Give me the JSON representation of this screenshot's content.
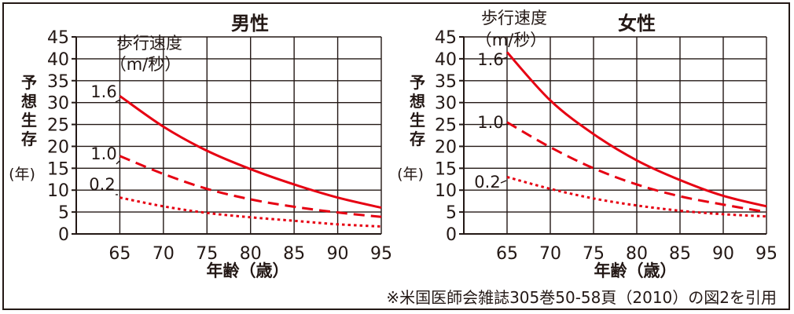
{
  "chart_data": [
    {
      "type": "line",
      "title": "男性",
      "xlabel": "年齢（歳）",
      "ylabel": "予想生存",
      "yunit": "(年)",
      "legend_title": [
        "歩行速度",
        "（m/秒）"
      ],
      "x": [
        65,
        70,
        75,
        80,
        85,
        90,
        95
      ],
      "xlim": [
        60,
        95
      ],
      "ylim": [
        0,
        45
      ],
      "yticks": [
        0,
        5,
        10,
        15,
        20,
        25,
        30,
        35,
        40,
        45
      ],
      "grid": true,
      "series": [
        {
          "name": "1.6",
          "style": "solid",
          "values": [
            31.5,
            24.5,
            19.0,
            14.8,
            11.3,
            8.3,
            6.0
          ]
        },
        {
          "name": "1.0",
          "style": "dashed",
          "values": [
            17.8,
            13.7,
            10.3,
            7.9,
            6.2,
            4.9,
            3.9
          ]
        },
        {
          "name": "0.2",
          "style": "dotted",
          "values": [
            8.3,
            6.3,
            4.8,
            3.8,
            3.0,
            2.2,
            1.7
          ]
        }
      ]
    },
    {
      "type": "line",
      "title": "女性",
      "xlabel": "年齢（歳）",
      "ylabel": "予想生存",
      "yunit": "(年)",
      "legend_title": [
        "歩行速度",
        "（m/秒）"
      ],
      "x": [
        65,
        70,
        75,
        80,
        85,
        90,
        95
      ],
      "xlim": [
        60,
        95
      ],
      "ylim": [
        0,
        45
      ],
      "yticks": [
        0,
        5,
        10,
        15,
        20,
        25,
        30,
        35,
        40,
        45
      ],
      "grid": true,
      "series": [
        {
          "name": "1.6",
          "style": "solid",
          "values": [
            41.5,
            30.5,
            22.8,
            16.8,
            12.3,
            8.7,
            6.3
          ]
        },
        {
          "name": "1.0",
          "style": "dashed",
          "values": [
            25.5,
            19.8,
            15.0,
            11.3,
            8.6,
            6.7,
            5.0
          ]
        },
        {
          "name": "0.2",
          "style": "dotted",
          "values": [
            13.0,
            10.3,
            8.1,
            6.5,
            5.3,
            4.5,
            4.0
          ]
        }
      ]
    }
  ],
  "colors": {
    "line": "#e60012",
    "text": "#231815",
    "grid": "#231815"
  },
  "footnote": "※米国医師会雑誌305巻50-58頁（2010）の図2を引用"
}
